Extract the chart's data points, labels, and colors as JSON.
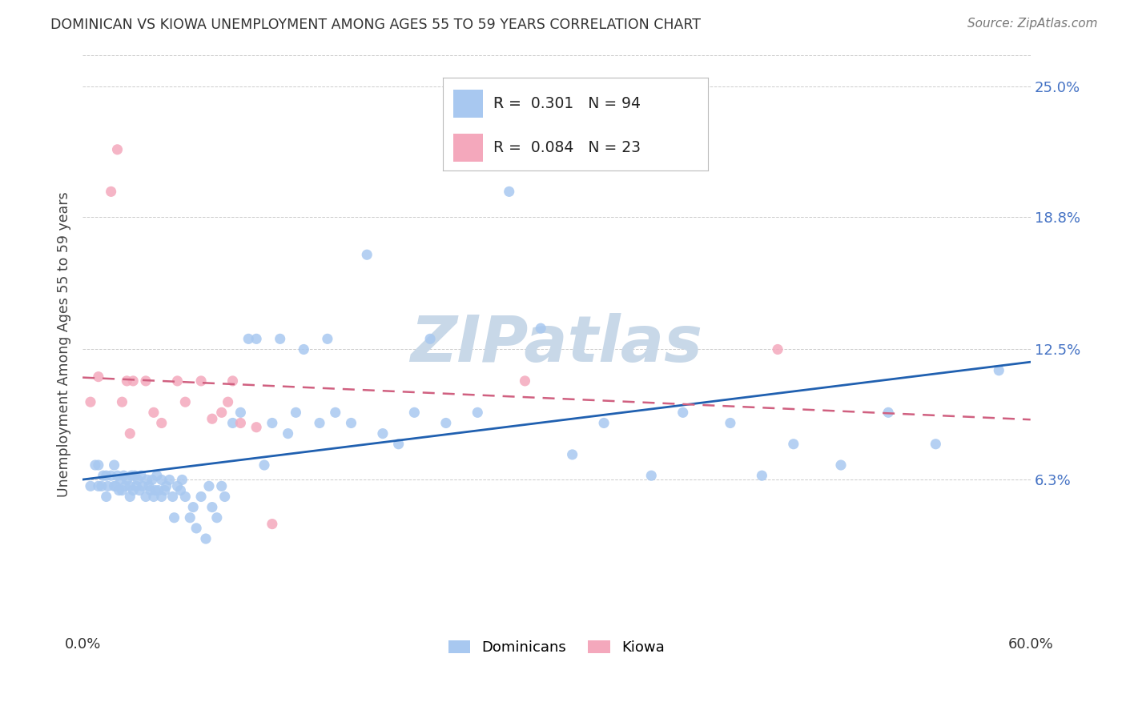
{
  "title": "DOMINICAN VS KIOWA UNEMPLOYMENT AMONG AGES 55 TO 59 YEARS CORRELATION CHART",
  "source": "Source: ZipAtlas.com",
  "ylabel": "Unemployment Among Ages 55 to 59 years",
  "xlim": [
    0.0,
    0.6
  ],
  "ylim": [
    -0.01,
    0.265
  ],
  "xticks": [
    0.0,
    0.1,
    0.2,
    0.3,
    0.4,
    0.5,
    0.6
  ],
  "xticklabels": [
    "0.0%",
    "",
    "",
    "",
    "",
    "",
    "60.0%"
  ],
  "ytick_positions": [
    0.063,
    0.125,
    0.188,
    0.25
  ],
  "ytick_labels": [
    "6.3%",
    "12.5%",
    "18.8%",
    "25.0%"
  ],
  "dominicans_R": 0.301,
  "dominicans_N": 94,
  "kiowa_R": 0.084,
  "kiowa_N": 23,
  "dominicans_color": "#a8c8f0",
  "kiowa_color": "#f4a8bc",
  "dominicans_line_color": "#2060b0",
  "kiowa_line_color": "#d06080",
  "background_color": "#ffffff",
  "watermark_color": "#c8d8e8",
  "legend_label_dominicans": "Dominicans",
  "legend_label_kiowa": "Kiowa",
  "dominicans_x": [
    0.005,
    0.008,
    0.01,
    0.01,
    0.012,
    0.013,
    0.015,
    0.015,
    0.016,
    0.018,
    0.02,
    0.02,
    0.021,
    0.022,
    0.023,
    0.024,
    0.025,
    0.026,
    0.027,
    0.028,
    0.03,
    0.03,
    0.031,
    0.032,
    0.033,
    0.034,
    0.035,
    0.036,
    0.037,
    0.038,
    0.04,
    0.041,
    0.042,
    0.043,
    0.044,
    0.045,
    0.046,
    0.047,
    0.048,
    0.05,
    0.05,
    0.052,
    0.053,
    0.055,
    0.057,
    0.058,
    0.06,
    0.062,
    0.063,
    0.065,
    0.068,
    0.07,
    0.072,
    0.075,
    0.078,
    0.08,
    0.082,
    0.085,
    0.088,
    0.09,
    0.095,
    0.1,
    0.105,
    0.11,
    0.115,
    0.12,
    0.125,
    0.13,
    0.135,
    0.14,
    0.15,
    0.155,
    0.16,
    0.17,
    0.18,
    0.19,
    0.2,
    0.21,
    0.22,
    0.23,
    0.25,
    0.27,
    0.29,
    0.31,
    0.33,
    0.36,
    0.38,
    0.41,
    0.43,
    0.45,
    0.48,
    0.51,
    0.54,
    0.58
  ],
  "dominicans_y": [
    0.06,
    0.07,
    0.06,
    0.07,
    0.06,
    0.065,
    0.055,
    0.065,
    0.06,
    0.065,
    0.06,
    0.07,
    0.06,
    0.065,
    0.058,
    0.063,
    0.058,
    0.065,
    0.06,
    0.063,
    0.055,
    0.06,
    0.065,
    0.058,
    0.065,
    0.06,
    0.063,
    0.058,
    0.065,
    0.06,
    0.055,
    0.063,
    0.06,
    0.058,
    0.063,
    0.055,
    0.058,
    0.065,
    0.058,
    0.055,
    0.063,
    0.058,
    0.06,
    0.063,
    0.055,
    0.045,
    0.06,
    0.058,
    0.063,
    0.055,
    0.045,
    0.05,
    0.04,
    0.055,
    0.035,
    0.06,
    0.05,
    0.045,
    0.06,
    0.055,
    0.09,
    0.095,
    0.13,
    0.13,
    0.07,
    0.09,
    0.13,
    0.085,
    0.095,
    0.125,
    0.09,
    0.13,
    0.095,
    0.09,
    0.17,
    0.085,
    0.08,
    0.095,
    0.13,
    0.09,
    0.095,
    0.2,
    0.135,
    0.075,
    0.09,
    0.065,
    0.095,
    0.09,
    0.065,
    0.08,
    0.07,
    0.095,
    0.08,
    0.115
  ],
  "kiowa_x": [
    0.005,
    0.01,
    0.018,
    0.022,
    0.025,
    0.028,
    0.03,
    0.032,
    0.04,
    0.045,
    0.05,
    0.06,
    0.065,
    0.075,
    0.082,
    0.088,
    0.092,
    0.095,
    0.1,
    0.11,
    0.12,
    0.28,
    0.44
  ],
  "kiowa_y": [
    0.1,
    0.112,
    0.2,
    0.22,
    0.1,
    0.11,
    0.085,
    0.11,
    0.11,
    0.095,
    0.09,
    0.11,
    0.1,
    0.11,
    0.092,
    0.095,
    0.1,
    0.11,
    0.09,
    0.088,
    0.042,
    0.11,
    0.125
  ]
}
